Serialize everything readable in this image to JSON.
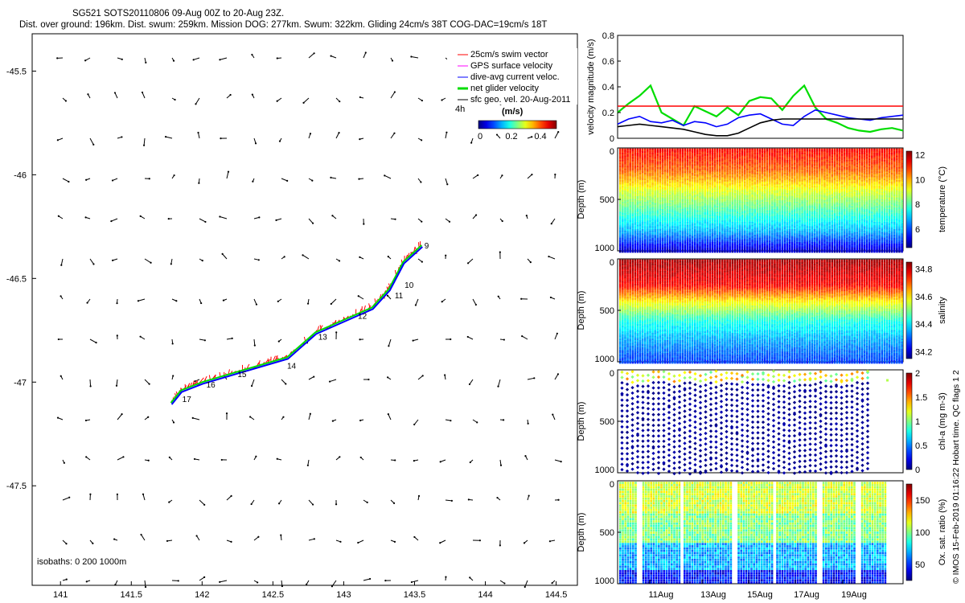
{
  "header": {
    "title_line1": "SG521 SOTS20110806 09-Aug 00Z to 20-Aug 23Z.",
    "title_line2": "Dist. over ground: 196km. Dist. swum: 259km. Mission DOG: 277km. Swum: 322km. Gliding 24cm/s 38T COG-DAC=19cm/s 18T"
  },
  "credit": "© IMOS 15-Feb-2019 01:16:22 Hobart time. QC flags 1  2",
  "colors": {
    "swim": "#ff0000",
    "gps": "#ff00ff",
    "dac": "#0000ff",
    "net": "#00dd00",
    "geo": "#000000",
    "threshold": "#ff0000"
  },
  "chart_data": [
    {
      "type": "scatter",
      "id": "track_map",
      "xlim": [
        140.8,
        144.65
      ],
      "ylim": [
        -47.98,
        -45.32
      ],
      "x_ticks": [
        "141",
        "141.5",
        "142",
        "142.5",
        "143",
        "143.5",
        "144",
        "144.5"
      ],
      "y_ticks": [
        "-45.5",
        "-46",
        "-46.5",
        "-47",
        "-47.5"
      ],
      "legend": [
        {
          "label": "25cm/s swim vector",
          "color": "#ff0000"
        },
        {
          "label": "GPS surface velocity",
          "color": "#ff00ff"
        },
        {
          "label": "dive-avg current veloc.",
          "color": "#0000ff"
        },
        {
          "label": "net glider velocity",
          "color": "#00dd00"
        },
        {
          "label": "sfc geo. vel. 20-Aug-2011",
          "color": "#000000"
        }
      ],
      "legend_4h": "4h",
      "colorbar_title": "(m/s)",
      "colorbar_ticks": [
        "0",
        "0.2",
        "0.4"
      ],
      "isobath_note": "isobaths: 0   200  1000m",
      "track": [
        [
          141.78,
          -47.1
        ],
        [
          141.85,
          -47.04
        ],
        [
          142.0,
          -47.0
        ],
        [
          142.2,
          -46.96
        ],
        [
          142.4,
          -46.92
        ],
        [
          142.6,
          -46.88
        ],
        [
          142.8,
          -46.76
        ],
        [
          143.0,
          -46.7
        ],
        [
          143.2,
          -46.64
        ],
        [
          143.32,
          -46.55
        ],
        [
          143.42,
          -46.42
        ],
        [
          143.55,
          -46.34
        ]
      ],
      "day_labels": [
        {
          "text": "9",
          "x": 143.57,
          "y": -46.34
        },
        {
          "text": "10",
          "x": 143.43,
          "y": -46.53
        },
        {
          "text": "11",
          "x": 143.36,
          "y": -46.58
        },
        {
          "text": "12",
          "x": 143.1,
          "y": -46.68
        },
        {
          "text": "13",
          "x": 142.82,
          "y": -46.78
        },
        {
          "text": "14",
          "x": 142.6,
          "y": -46.92
        },
        {
          "text": "15",
          "x": 142.25,
          "y": -46.96
        },
        {
          "text": "16",
          "x": 142.03,
          "y": -47.01
        },
        {
          "text": "17",
          "x": 141.86,
          "y": -47.08
        }
      ]
    },
    {
      "type": "line",
      "id": "velocity",
      "ylabel": "velocity magnitude (m/s)",
      "ylim": [
        0,
        0.8
      ],
      "y_ticks": [
        "0",
        "0.2",
        "0.4",
        "0.6",
        "0.8"
      ],
      "threshold": 0.25,
      "series": [
        {
          "color": "#00dd00",
          "values": [
            0.2,
            0.27,
            0.33,
            0.41,
            0.2,
            0.15,
            0.1,
            0.25,
            0.21,
            0.17,
            0.24,
            0.18,
            0.29,
            0.32,
            0.31,
            0.22,
            0.33,
            0.41,
            0.24,
            0.15,
            0.12,
            0.08,
            0.06,
            0.05,
            0.07,
            0.08,
            0.06
          ]
        },
        {
          "color": "#0000ff",
          "values": [
            0.11,
            0.15,
            0.17,
            0.13,
            0.12,
            0.14,
            0.1,
            0.13,
            0.12,
            0.09,
            0.11,
            0.16,
            0.18,
            0.19,
            0.15,
            0.11,
            0.1,
            0.17,
            0.22,
            0.2,
            0.18,
            0.16,
            0.15,
            0.14,
            0.16,
            0.17,
            0.18
          ]
        },
        {
          "color": "#000000",
          "values": [
            0.09,
            0.1,
            0.11,
            0.1,
            0.09,
            0.08,
            0.07,
            0.05,
            0.03,
            0.02,
            0.02,
            0.04,
            0.08,
            0.12,
            0.14,
            0.15,
            0.15,
            0.15,
            0.15,
            0.15,
            0.15,
            0.15,
            0.15,
            0.15,
            0.15,
            0.15,
            0.15
          ]
        }
      ]
    },
    {
      "type": "heatmap",
      "id": "temperature",
      "ylabel": "Depth (m)",
      "clabel": "temperature (°C)",
      "ylim": [
        0,
        1000
      ],
      "y_ticks": [
        "0",
        "500",
        "1000"
      ],
      "c_ticks": [
        "6",
        "8",
        "10",
        "12"
      ],
      "clim": [
        4.5,
        12.3
      ],
      "profile": [
        [
          0,
          11.3
        ],
        [
          200,
          10.6
        ],
        [
          400,
          9.2
        ],
        [
          600,
          8.0
        ],
        [
          800,
          6.9
        ],
        [
          1000,
          5.0
        ]
      ]
    },
    {
      "type": "heatmap",
      "id": "salinity",
      "ylabel": "Depth (m)",
      "clabel": "salinity",
      "ylim": [
        0,
        1000
      ],
      "y_ticks": [
        "0",
        "500",
        "1000"
      ],
      "c_ticks": [
        "34.2",
        "34.4",
        "34.6",
        "34.8"
      ],
      "clim": [
        34.15,
        34.85
      ],
      "profile": [
        [
          0,
          34.82
        ],
        [
          250,
          34.76
        ],
        [
          400,
          34.6
        ],
        [
          600,
          34.43
        ],
        [
          800,
          34.35
        ],
        [
          1000,
          34.28
        ]
      ]
    },
    {
      "type": "scatter",
      "id": "chla",
      "ylabel": "Depth (m)",
      "clabel": "chl-a (mg m-3)",
      "ylim": [
        0,
        1000
      ],
      "y_ticks": [
        "0",
        "500",
        "1000"
      ],
      "c_ticks": [
        "0",
        "0.5",
        "1",
        "1.5",
        "2"
      ],
      "clim": [
        0,
        2
      ]
    },
    {
      "type": "heatmap",
      "id": "oxygen",
      "ylabel": "Depth (m)",
      "clabel": "Ox. sat. ratio (%)",
      "ylim": [
        0,
        1000
      ],
      "y_ticks": [
        "0",
        "500",
        "1000"
      ],
      "c_ticks": [
        "50",
        "100",
        "150"
      ],
      "clim": [
        25,
        175
      ],
      "x_ticks": [
        "11Aug",
        "13Aug",
        "15Aug",
        "17Aug",
        "19Aug"
      ]
    }
  ]
}
